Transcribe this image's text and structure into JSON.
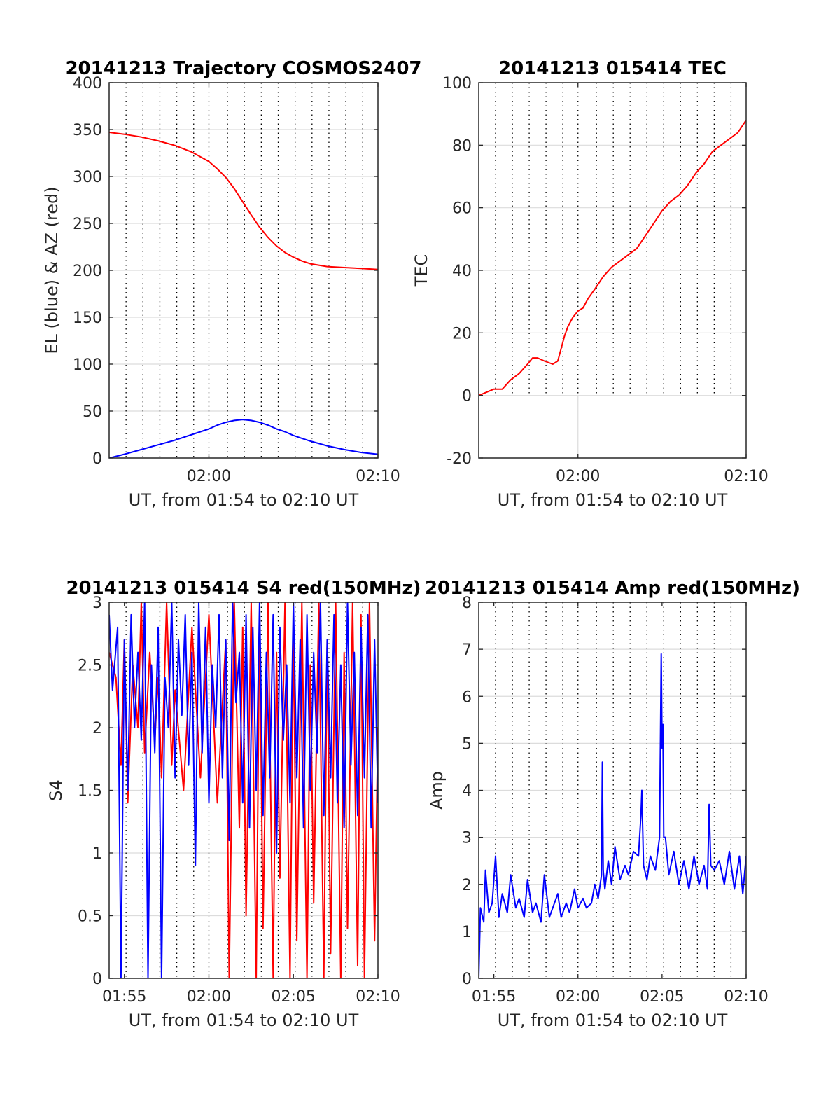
{
  "chart_data": [
    {
      "id": "traj",
      "type": "line",
      "title": "20141213 Trajectory COSMOS2407",
      "xlabel": "UT, from 01:54 to 02:10 UT",
      "ylabel": "EL (blue) & AZ (red)",
      "xlim": [
        -5.9,
        10
      ],
      "ylim": [
        0,
        400
      ],
      "yticks": [
        0,
        50,
        100,
        150,
        200,
        250,
        300,
        350,
        400
      ],
      "xticks": [
        0,
        10
      ],
      "xtick_labels": [
        "02:00",
        "02:10"
      ],
      "vgrid_x": [
        -5.9,
        -4.9,
        -3.9,
        -2.9,
        -1.9,
        -0.9,
        0,
        1.1,
        2.1,
        3.1,
        4.1,
        5.1,
        6.1,
        7.1,
        8.1,
        9.1,
        10
      ],
      "series": [
        {
          "color": "#ff0000",
          "x": [
            -5.9,
            -5,
            -4,
            -3,
            -2,
            -1,
            0,
            0.5,
            1,
            1.5,
            2,
            2.5,
            3,
            3.5,
            4,
            4.5,
            5,
            5.5,
            6,
            7,
            8,
            9,
            10
          ],
          "values": [
            347,
            345,
            342,
            338,
            333,
            326,
            316,
            308,
            299,
            287,
            273,
            259,
            246,
            235,
            226,
            219,
            214,
            210,
            207,
            204,
            203,
            202,
            201
          ]
        },
        {
          "color": "#0000ff",
          "x": [
            -5.9,
            -5,
            -4,
            -3,
            -2,
            -1,
            0,
            0.5,
            1,
            1.5,
            2,
            2.5,
            3,
            3.5,
            4,
            4.5,
            5,
            5.5,
            6,
            7,
            8,
            9,
            10
          ],
          "values": [
            0,
            4,
            9,
            14,
            19,
            25,
            31,
            35,
            38,
            40,
            41,
            40,
            38,
            35,
            31,
            28,
            24,
            21,
            18,
            13,
            9,
            6,
            4
          ]
        }
      ]
    },
    {
      "id": "tec",
      "type": "line",
      "title": "20141213 015414 TEC",
      "xlabel": "UT, from 01:54 to 02:10 UT",
      "ylabel": "TEC",
      "xlim": [
        -5.9,
        10
      ],
      "ylim": [
        -20,
        100
      ],
      "yticks": [
        -20,
        0,
        20,
        40,
        60,
        80,
        100
      ],
      "xticks": [
        0,
        10
      ],
      "xtick_labels": [
        "02:00",
        "02:10"
      ],
      "vgrid_x": [
        -5.9,
        -4.9,
        -3.9,
        -2.9,
        -1.9,
        -0.9,
        0,
        1.1,
        2.1,
        3.1,
        4.1,
        5.1,
        6.1,
        7.1,
        8.1,
        9.1,
        10
      ],
      "vgrid_until": 0,
      "series": [
        {
          "color": "#ff0000",
          "x": [
            -5.9,
            -5.0,
            -4.5,
            -4.0,
            -3.5,
            -3.0,
            -2.7,
            -2.4,
            -2.0,
            -1.5,
            -1.2,
            -1.0,
            -0.8,
            -0.6,
            -0.3,
            0,
            0.3,
            0.6,
            1.0,
            1.5,
            2.0,
            2.5,
            3.0,
            3.5,
            4.0,
            4.5,
            5.0,
            5.5,
            6.0,
            6.5,
            7.0,
            7.5,
            8.0,
            8.5,
            9.0,
            9.5,
            10
          ],
          "values": [
            0,
            2,
            2,
            5,
            7,
            10,
            12,
            12,
            11,
            10,
            11,
            15,
            19,
            22,
            25,
            27,
            28,
            31,
            34,
            38,
            41,
            43,
            45,
            47,
            51,
            55,
            59,
            62,
            64,
            67,
            71,
            74,
            78,
            80,
            82,
            84,
            88
          ]
        }
      ]
    },
    {
      "id": "s4",
      "type": "line",
      "title": "20141213 015414 S4 red(150MHz)",
      "xlabel": "UT, from 01:54 to 02:10 UT",
      "ylabel": "S4",
      "xlim": [
        -5.9,
        10
      ],
      "ylim": [
        0,
        3
      ],
      "yticks": [
        0,
        0.5,
        1,
        1.5,
        2,
        2.5,
        3
      ],
      "xticks": [
        -5,
        0,
        5,
        10
      ],
      "xtick_labels": [
        "01:55",
        "02:00",
        "02:05",
        "02:10"
      ],
      "vgrid_x": [
        -5.9,
        -4.9,
        -3.9,
        -2.9,
        -1.9,
        -0.9,
        0,
        1.1,
        2.1,
        3.1,
        4.1,
        5.1,
        6.1,
        7.1,
        8.1,
        9.1,
        10
      ],
      "series": [
        {
          "color": "#ff0000",
          "x": [
            -5.9,
            -5.5,
            -5.2,
            -5.0,
            -4.8,
            -4.5,
            -4.2,
            -4.0,
            -3.8,
            -3.5,
            -3.2,
            -3.0,
            -2.8,
            -2.5,
            -2.2,
            -2.0,
            -1.5,
            -1.0,
            -0.5,
            0,
            0.5,
            1.0,
            1.2,
            1.5,
            1.8,
            2.0,
            2.2,
            2.5,
            2.8,
            3.0,
            3.2,
            3.5,
            3.8,
            4.0,
            4.2,
            4.5,
            4.8,
            5.0,
            5.2,
            5.5,
            5.8,
            6.0,
            6.2,
            6.5,
            6.8,
            7.0,
            7.2,
            7.5,
            7.8,
            8.0,
            8.2,
            8.5,
            8.8,
            9.0,
            9.2,
            9.5,
            9.8,
            10
          ],
          "values": [
            2.6,
            2.4,
            1.7,
            2.7,
            1.4,
            2.5,
            2.0,
            3.0,
            1.8,
            2.6,
            1.9,
            2.4,
            1.6,
            3.0,
            1.7,
            2.3,
            1.5,
            2.8,
            1.6,
            2.9,
            1.4,
            2.7,
            0,
            3.0,
            1.2,
            2.8,
            0.5,
            3.0,
            0,
            2.9,
            0.4,
            3.0,
            0,
            2.6,
            0.8,
            3.0,
            0,
            2.8,
            0.3,
            3.0,
            0,
            2.5,
            0.6,
            3.0,
            0,
            2.7,
            0.2,
            3.0,
            0,
            2.6,
            0.4,
            3.0,
            0.1,
            2.9,
            0,
            3.0,
            0.3,
            2.0
          ]
        },
        {
          "color": "#0000ff",
          "x": [
            -5.9,
            -5.7,
            -5.4,
            -5.2,
            -5.0,
            -4.8,
            -4.6,
            -4.4,
            -4.2,
            -4.0,
            -3.8,
            -3.6,
            -3.4,
            -3.2,
            -3.0,
            -2.8,
            -2.6,
            -2.4,
            -2.2,
            -2.0,
            -1.8,
            -1.6,
            -1.4,
            -1.2,
            -1.0,
            -0.8,
            -0.6,
            -0.4,
            -0.2,
            0,
            0.2,
            0.4,
            0.6,
            0.8,
            1.0,
            1.2,
            1.4,
            1.6,
            1.8,
            2.0,
            2.2,
            2.4,
            2.6,
            2.8,
            3.0,
            3.2,
            3.4,
            3.6,
            3.8,
            4.0,
            4.2,
            4.4,
            4.6,
            4.8,
            5.0,
            5.2,
            5.4,
            5.6,
            5.8,
            6.0,
            6.2,
            6.4,
            6.6,
            6.8,
            7.0,
            7.2,
            7.4,
            7.6,
            7.8,
            8.0,
            8.2,
            8.4,
            8.6,
            8.8,
            9.0,
            9.2,
            9.4,
            9.6,
            9.8,
            10
          ],
          "values": [
            2.9,
            2.3,
            2.8,
            0,
            2.7,
            1.5,
            2.9,
            2.0,
            2.6,
            1.9,
            3.0,
            0,
            2.5,
            1.8,
            2.8,
            0,
            2.4,
            2.0,
            3.0,
            1.6,
            2.7,
            2.1,
            2.9,
            1.7,
            2.6,
            0.9,
            3.0,
            1.8,
            2.8,
            1.4,
            2.5,
            2.0,
            2.9,
            1.6,
            2.7,
            1.1,
            3.0,
            2.2,
            2.6,
            1.4,
            2.9,
            1.2,
            2.8,
            1.5,
            3.0,
            1.3,
            2.6,
            1.6,
            2.9,
            1.0,
            2.8,
            1.9,
            2.5,
            1.4,
            3.0,
            1.6,
            2.7,
            1.2,
            2.9,
            1.5,
            2.6,
            1.8,
            3.0,
            1.3,
            2.7,
            1.6,
            2.9,
            1.4,
            2.5,
            1.2,
            3.0,
            1.7,
            2.6,
            1.3,
            2.8,
            1.6,
            2.9,
            1.2,
            2.7,
            1.4
          ]
        }
      ]
    },
    {
      "id": "amp",
      "type": "line",
      "title": "20141213 015414 Amp red(150MHz)",
      "xlabel": "UT, from 01:54 to 02:10 UT",
      "ylabel": "Amp",
      "xlim": [
        -5.9,
        10
      ],
      "ylim": [
        0,
        8
      ],
      "yticks": [
        0,
        1,
        2,
        3,
        4,
        5,
        6,
        7,
        8
      ],
      "xticks": [
        -5,
        0,
        5,
        10
      ],
      "xtick_labels": [
        "01:55",
        "02:00",
        "02:05",
        "02:10"
      ],
      "vgrid_x": [
        -5.9,
        -4.9,
        -3.9,
        -2.9,
        -1.9,
        -0.9,
        0,
        1.1,
        2.1,
        3.1,
        4.1,
        5.1,
        6.1,
        7.1,
        8.1,
        9.1,
        10
      ],
      "series": [
        {
          "color": "#0000ff",
          "x": [
            -5.9,
            -5.8,
            -5.6,
            -5.5,
            -5.3,
            -5.1,
            -4.9,
            -4.7,
            -4.5,
            -4.2,
            -4.0,
            -3.7,
            -3.5,
            -3.2,
            -3.0,
            -2.7,
            -2.5,
            -2.2,
            -2.0,
            -1.7,
            -1.5,
            -1.2,
            -1.0,
            -0.7,
            -0.5,
            -0.2,
            0,
            0.3,
            0.5,
            0.8,
            1.0,
            1.2,
            1.4,
            1.45,
            1.5,
            1.6,
            1.8,
            2.0,
            2.2,
            2.5,
            2.8,
            3.0,
            3.3,
            3.6,
            3.75,
            3.8,
            3.9,
            4.1,
            4.3,
            4.6,
            4.85,
            4.95,
            5.0,
            5.05,
            5.1,
            5.2,
            5.4,
            5.7,
            6.0,
            6.3,
            6.6,
            6.9,
            7.2,
            7.5,
            7.7,
            7.8,
            7.9,
            8.1,
            8.4,
            8.7,
            9.0,
            9.3,
            9.6,
            9.8,
            10
          ],
          "values": [
            0,
            1.5,
            1.2,
            2.3,
            1.4,
            1.6,
            2.6,
            1.3,
            1.8,
            1.4,
            2.2,
            1.5,
            1.7,
            1.3,
            2.1,
            1.4,
            1.6,
            1.2,
            2.2,
            1.3,
            1.5,
            1.8,
            1.3,
            1.6,
            1.4,
            1.9,
            1.5,
            1.7,
            1.5,
            1.6,
            2.0,
            1.7,
            2.2,
            4.6,
            2.3,
            1.9,
            2.5,
            2.0,
            2.8,
            2.1,
            2.4,
            2.2,
            2.7,
            2.6,
            3.5,
            4.0,
            2.4,
            2.1,
            2.6,
            2.3,
            3.0,
            6.9,
            4.9,
            5.4,
            3.0,
            3.0,
            2.2,
            2.7,
            2.0,
            2.5,
            1.9,
            2.6,
            2.0,
            2.4,
            1.9,
            3.7,
            2.4,
            2.3,
            2.5,
            2.0,
            2.7,
            1.9,
            2.6,
            1.8,
            2.6
          ]
        }
      ]
    }
  ]
}
